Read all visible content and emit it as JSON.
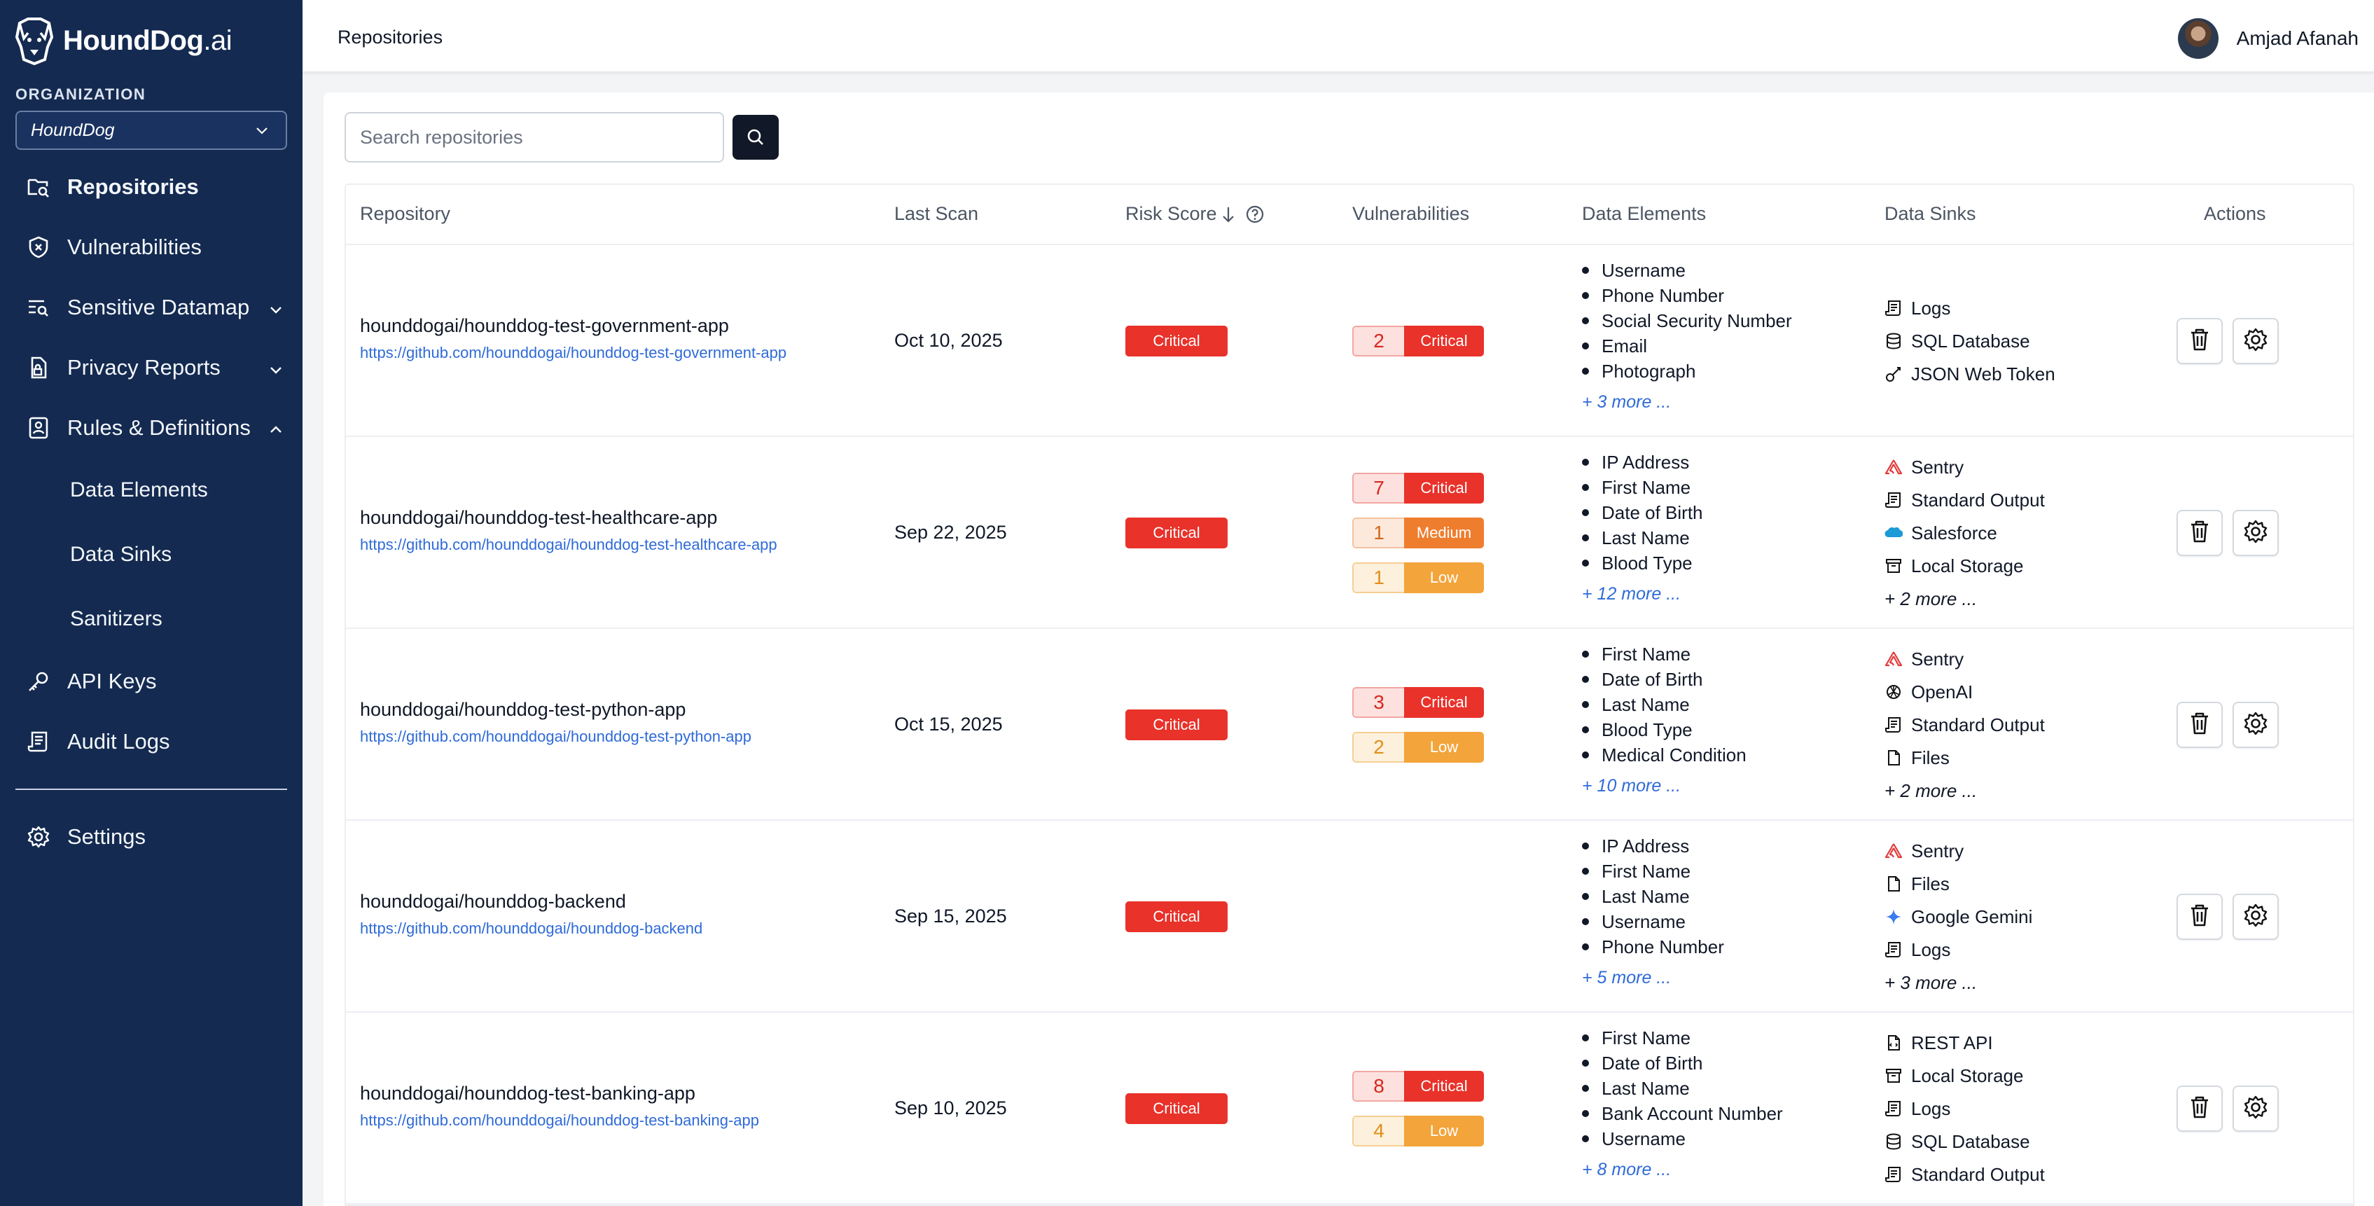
{
  "brand": {
    "name_bold": "HoundDog",
    "name_light": ".ai"
  },
  "org": {
    "label": "ORGANIZATION",
    "selected": "HoundDog"
  },
  "nav": {
    "repositories": "Repositories",
    "vulnerabilities": "Vulnerabilities",
    "sensitive_datamap": "Sensitive Datamap",
    "privacy_reports": "Privacy Reports",
    "rules_definitions": "Rules & Definitions",
    "data_elements": "Data Elements",
    "data_sinks": "Data Sinks",
    "sanitizers": "Sanitizers",
    "api_keys": "API Keys",
    "audit_logs": "Audit Logs",
    "settings": "Settings"
  },
  "header": {
    "title": "Repositories",
    "user_name": "Amjad Afanah"
  },
  "search": {
    "placeholder": "Search repositories"
  },
  "columns": {
    "repository": "Repository",
    "last_scan": "Last Scan",
    "risk_score": "Risk Score",
    "vulnerabilities": "Vulnerabilities",
    "data_elements": "Data Elements",
    "data_sinks": "Data Sinks",
    "actions": "Actions"
  },
  "rows": [
    {
      "name": "hounddogai/hounddog-test-government-app",
      "url": "https://github.com/hounddogai/hounddog-test-government-app",
      "last_scan": "Oct 10, 2025",
      "risk": "Critical",
      "vulns": [
        {
          "count": "2",
          "level": "Critical"
        }
      ],
      "elements": [
        "Username",
        "Phone Number",
        "Social Security Number",
        "Email",
        "Photograph"
      ],
      "elements_more": "+ 3 more ...",
      "sinks": [
        {
          "icon": "logs-icon",
          "label": "Logs"
        },
        {
          "icon": "database-icon",
          "label": "SQL Database"
        },
        {
          "icon": "key-icon",
          "label": "JSON Web Token"
        }
      ],
      "sinks_more": ""
    },
    {
      "name": "hounddogai/hounddog-test-healthcare-app",
      "url": "https://github.com/hounddogai/hounddog-test-healthcare-app",
      "last_scan": "Sep 22, 2025",
      "risk": "Critical",
      "vulns": [
        {
          "count": "7",
          "level": "Critical"
        },
        {
          "count": "1",
          "level": "Medium"
        },
        {
          "count": "1",
          "level": "Low"
        }
      ],
      "elements": [
        "IP Address",
        "First Name",
        "Date of Birth",
        "Last Name",
        "Blood Type"
      ],
      "elements_more": "+ 12 more ...",
      "sinks": [
        {
          "icon": "sentry-icon",
          "label": "Sentry"
        },
        {
          "icon": "logs-icon",
          "label": "Standard Output"
        },
        {
          "icon": "salesforce-icon",
          "label": "Salesforce"
        },
        {
          "icon": "archive-icon",
          "label": "Local Storage"
        }
      ],
      "sinks_more": "+ 2 more ..."
    },
    {
      "name": "hounddogai/hounddog-test-python-app",
      "url": "https://github.com/hounddogai/hounddog-test-python-app",
      "last_scan": "Oct 15, 2025",
      "risk": "Critical",
      "vulns": [
        {
          "count": "3",
          "level": "Critical"
        },
        {
          "count": "2",
          "level": "Low"
        }
      ],
      "elements": [
        "First Name",
        "Date of Birth",
        "Last Name",
        "Blood Type",
        "Medical Condition"
      ],
      "elements_more": "+ 10 more ...",
      "sinks": [
        {
          "icon": "sentry-icon",
          "label": "Sentry"
        },
        {
          "icon": "openai-icon",
          "label": "OpenAI"
        },
        {
          "icon": "logs-icon",
          "label": "Standard Output"
        },
        {
          "icon": "file-icon",
          "label": "Files"
        }
      ],
      "sinks_more": "+ 2 more ..."
    },
    {
      "name": "hounddogai/hounddog-backend",
      "url": "https://github.com/hounddogai/hounddog-backend",
      "last_scan": "Sep 15, 2025",
      "risk": "Critical",
      "vulns": [],
      "elements": [
        "IP Address",
        "First Name",
        "Last Name",
        "Username",
        "Phone Number"
      ],
      "elements_more": "+ 5 more ...",
      "sinks": [
        {
          "icon": "sentry-icon",
          "label": "Sentry"
        },
        {
          "icon": "file-icon",
          "label": "Files"
        },
        {
          "icon": "gemini-icon",
          "label": "Google Gemini"
        },
        {
          "icon": "logs-icon",
          "label": "Logs"
        }
      ],
      "sinks_more": "+ 3 more ..."
    },
    {
      "name": "hounddogai/hounddog-test-banking-app",
      "url": "https://github.com/hounddogai/hounddog-test-banking-app",
      "last_scan": "Sep 10, 2025",
      "risk": "Critical",
      "vulns": [
        {
          "count": "8",
          "level": "Critical"
        },
        {
          "count": "4",
          "level": "Low"
        }
      ],
      "elements": [
        "First Name",
        "Date of Birth",
        "Last Name",
        "Bank Account Number",
        "Username"
      ],
      "elements_more": "+ 8 more ...",
      "sinks": [
        {
          "icon": "api-icon",
          "label": "REST API"
        },
        {
          "icon": "archive-icon",
          "label": "Local Storage"
        },
        {
          "icon": "logs-icon",
          "label": "Logs"
        },
        {
          "icon": "database-icon",
          "label": "SQL Database"
        },
        {
          "icon": "logs-icon",
          "label": "Standard Output"
        }
      ],
      "sinks_more": ""
    }
  ],
  "colors": {
    "sidebar": "#142a50",
    "critical": "#e8322a",
    "medium": "#ef7d2e",
    "low": "#f3a43a",
    "link": "#2f6bd8"
  }
}
